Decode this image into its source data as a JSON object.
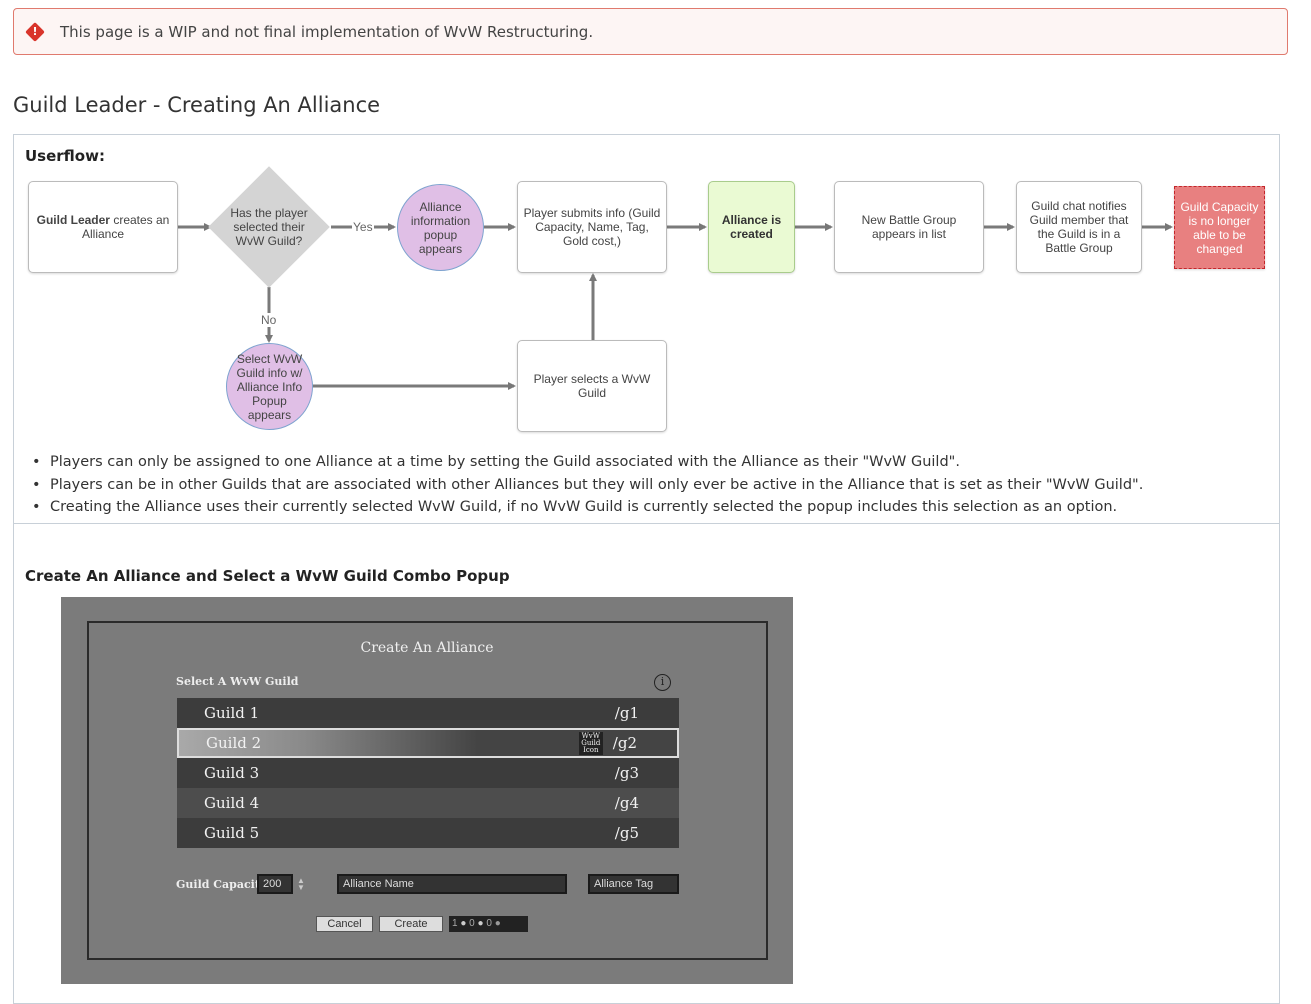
{
  "alert": {
    "icon": "exclamation-diamond-icon",
    "text": "This page is a WIP and not final implementation of WvW Restructuring.",
    "color": "#d9342b"
  },
  "page_title": "Guild Leader - Creating An Alliance",
  "userflow": {
    "label": "Userflow:",
    "nodes": {
      "start_bold": "Guild Leader",
      "start_rest": " creates an Alliance",
      "decision": "Has the player selected their WvW Guild?",
      "yes": "Yes",
      "no": "No",
      "popup": "Alliance information popup appears",
      "submit": "Player submits info (Guild Capacity, Name, Tag, Gold cost,)",
      "created": "Alliance is created",
      "battle_group": "New Battle Group appears in list",
      "chat": "Guild chat notifies Guild member that the Guild is in a Battle Group",
      "capacity": "Guild Capacity is no longer able to be changed",
      "select_popup": "Select WvW Guild info w/ Alliance Info Popup appears",
      "player_selects": "Player selects a WvW Guild"
    },
    "colors": {
      "circle": "#e0bfe6",
      "created": "#eafad3",
      "capacity": "#e88080"
    }
  },
  "notes": [
    "Players can only be assigned to one Alliance at a time by setting the Guild associated with the Alliance as their \"WvW Guild\".",
    "Players can be in other Guilds that are associated with other Alliances but they will only ever be active in the Alliance that is set as their \"WvW Guild\".",
    "Creating the Alliance uses their currently selected WvW Guild, if no WvW Guild is currently selected the popup includes this selection as an option."
  ],
  "popup_section": {
    "label": "Create An Alliance and Select a WvW Guild Combo Popup",
    "title": "Create An Alliance",
    "select_label": "Select A WvW Guild",
    "guilds": [
      {
        "name": "Guild 1",
        "tag": "/g1"
      },
      {
        "name": "Guild 2",
        "tag": "/g2",
        "selected": true,
        "icon_text": "WvW Guild Icon"
      },
      {
        "name": "Guild 3",
        "tag": "/g3"
      },
      {
        "name": "Guild 4",
        "tag": "/g4"
      },
      {
        "name": "Guild 5",
        "tag": "/g5"
      }
    ],
    "capacity_label": "Guild Capacity",
    "capacity_value": "200",
    "name_placeholder": "Alliance Name",
    "tag_placeholder": "Alliance Tag",
    "cancel": "Cancel",
    "create": "Create",
    "cost": {
      "gold": "1",
      "silver": "0",
      "copper": "0"
    }
  }
}
